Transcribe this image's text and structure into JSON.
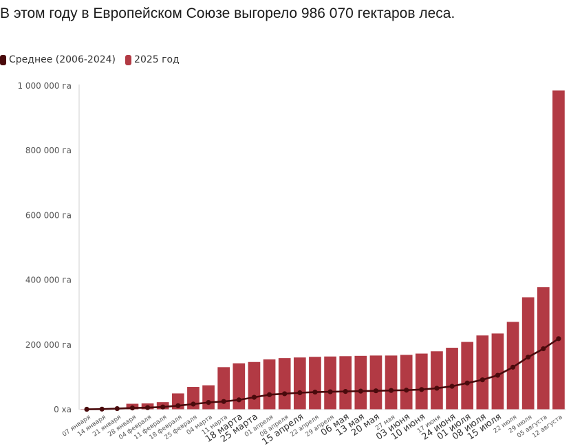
{
  "title": "В этом году в Европейском Союзе выгорело 986 070 гектаров леса.",
  "legend": {
    "avg_label": "Среднее (2006-2024)",
    "current_label": "2025 год"
  },
  "colors": {
    "avg": "#4a0a0c",
    "bar": "#b23a44",
    "axis": "#cfcfcf"
  },
  "chart_data": {
    "type": "bar",
    "title": "В этом году в Европейском Союзе выгорело 986 070 гектаров леса.",
    "xlabel": "",
    "ylabel": "",
    "ylim": [
      0,
      1000000
    ],
    "y_ticks": [
      {
        "value": 0,
        "label": "0 ха"
      },
      {
        "value": 200000,
        "label": "200 000 га"
      },
      {
        "value": 400000,
        "label": "400 000 га"
      },
      {
        "value": 600000,
        "label": "600 000 га"
      },
      {
        "value": 800000,
        "label": "800 000 га"
      },
      {
        "value": 1000000,
        "label": "1 000 000 га"
      }
    ],
    "categories": [
      "07 января",
      "14 января",
      "21 января",
      "28 января",
      "04 февраля",
      "11 февраля",
      "18 февраля",
      "25 февраля",
      "04 марта",
      "11 марта",
      "18 марта",
      "25 марта",
      "01 апреля",
      "08 апреля",
      "15 апреля",
      "22 апреля",
      "29 апреля",
      "06 мая",
      "13 мая",
      "20 мая",
      "27 мая",
      "03 июня",
      "10 июня",
      "17 июня",
      "24 июня",
      "01 июля",
      "08 июля",
      "15 июля",
      "22 июля",
      "29 июля",
      "05 августа",
      "12 августа"
    ],
    "large_labels": [
      "18 марта",
      "25 марта",
      "15 апреля",
      "06 мая",
      "13 мая",
      "20 мая",
      "03 июня",
      "10 июня",
      "24 июня",
      "01 июля",
      "08 июля",
      "15 июля"
    ],
    "series": [
      {
        "name": "2025 год",
        "kind": "bar",
        "values": [
          2000,
          3000,
          5000,
          18000,
          19000,
          23000,
          50000,
          70000,
          75000,
          131000,
          143000,
          147000,
          155000,
          159000,
          161000,
          163000,
          164000,
          165000,
          166000,
          167000,
          167000,
          169000,
          173000,
          180000,
          191000,
          209000,
          229000,
          235000,
          271000,
          347000,
          378000,
          986070
        ]
      },
      {
        "name": "Среднее (2006-2024)",
        "kind": "line",
        "values": [
          1000,
          1500,
          3000,
          5000,
          6000,
          8000,
          12000,
          17000,
          22000,
          25000,
          30000,
          38000,
          46000,
          49000,
          52000,
          54000,
          55000,
          56000,
          57000,
          58000,
          59000,
          60000,
          62000,
          66000,
          72000,
          82000,
          92000,
          106000,
          131000,
          162000,
          188000,
          219000
        ]
      }
    ]
  }
}
